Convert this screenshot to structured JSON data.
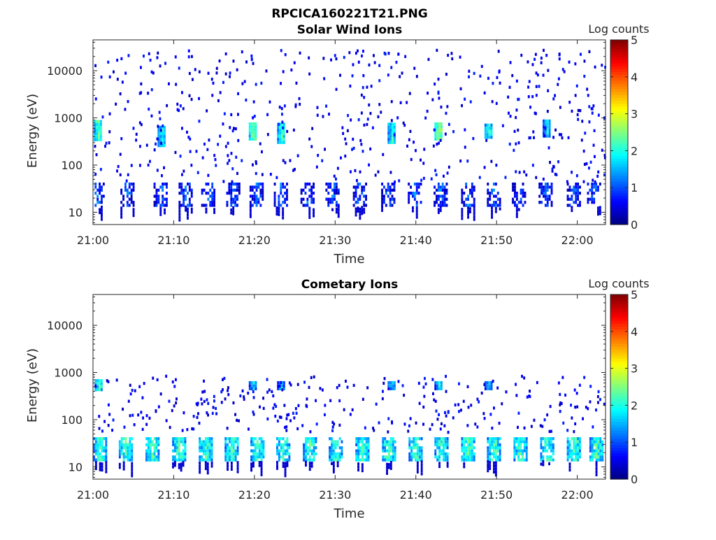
{
  "figure": {
    "title": "RPCICA160221T21.PNG"
  },
  "colorbar": {
    "label": "Log counts",
    "ticks": [
      "0",
      "1",
      "2",
      "3",
      "4",
      "5"
    ],
    "range": [
      0,
      5
    ],
    "colormap": "jet"
  },
  "chart_data": [
    {
      "type": "heatmap",
      "title": "Solar Wind Ions",
      "xlabel": "Time",
      "ylabel": "Energy (eV)",
      "x_ticks": [
        "21:00",
        "21:10",
        "21:20",
        "21:30",
        "21:40",
        "21:50",
        "22:00"
      ],
      "y_ticks": [
        "10",
        "100",
        "1000",
        "10000"
      ],
      "y_scale": "log",
      "ylim": [
        5.5,
        45000
      ],
      "xlim_minutes": [
        0,
        63.5
      ],
      "zlim": [
        0,
        5
      ],
      "bands": [
        {
          "t": 0.6,
          "e_lo": 320,
          "e_hi": 800,
          "z": 2.7
        },
        {
          "t": 8.5,
          "e_lo": 240,
          "e_hi": 650,
          "z": 2.3
        },
        {
          "t": 19.8,
          "e_lo": 330,
          "e_hi": 700,
          "z": 2.8
        },
        {
          "t": 23.3,
          "e_lo": 280,
          "e_hi": 700,
          "z": 2.6
        },
        {
          "t": 37.0,
          "e_lo": 280,
          "e_hi": 700,
          "z": 2.4
        },
        {
          "t": 42.8,
          "e_lo": 330,
          "e_hi": 800,
          "z": 3.0
        },
        {
          "t": 49.0,
          "e_lo": 360,
          "e_hi": 700,
          "z": 2.4
        },
        {
          "t": 56.2,
          "e_lo": 380,
          "e_hi": 800,
          "z": 2.1
        }
      ],
      "low_energy_bursts_minutes": [
        0.5,
        4.2,
        8.3,
        11.4,
        14.2,
        17.3,
        20.2,
        23.2,
        26.5,
        29.6,
        33.0,
        36.5,
        39.8,
        43.0,
        46.4,
        49.6,
        52.7,
        56.0,
        59.5,
        62.0
      ]
    },
    {
      "type": "heatmap",
      "title": "Cometary Ions",
      "xlabel": "Time",
      "ylabel": "Energy (eV)",
      "x_ticks": [
        "21:00",
        "21:10",
        "21:20",
        "21:30",
        "21:40",
        "21:50",
        "22:00"
      ],
      "y_ticks": [
        "10",
        "100",
        "1000",
        "10000"
      ],
      "y_scale": "log",
      "ylim": [
        5.5,
        45000
      ],
      "xlim_minutes": [
        0,
        63.5
      ],
      "zlim": [
        0,
        5
      ],
      "bands": [
        {
          "t": 0.7,
          "e_lo": 400,
          "e_hi": 700,
          "z": 2.4
        },
        {
          "t": 19.8,
          "e_lo": 420,
          "e_hi": 620,
          "z": 2.0
        },
        {
          "t": 23.3,
          "e_lo": 420,
          "e_hi": 620,
          "z": 2.0
        },
        {
          "t": 37.0,
          "e_lo": 420,
          "e_hi": 620,
          "z": 2.0
        },
        {
          "t": 42.8,
          "e_lo": 420,
          "e_hi": 620,
          "z": 2.1
        },
        {
          "t": 49.0,
          "e_lo": 420,
          "e_hi": 620,
          "z": 2.0
        }
      ],
      "low_energy_bursts_minutes": [
        0.8,
        4.0,
        7.3,
        10.6,
        13.9,
        17.1,
        20.3,
        23.5,
        26.8,
        30.0,
        33.3,
        36.6,
        39.9,
        43.1,
        46.4,
        49.6,
        52.9,
        56.2,
        59.5,
        62.3
      ]
    }
  ]
}
